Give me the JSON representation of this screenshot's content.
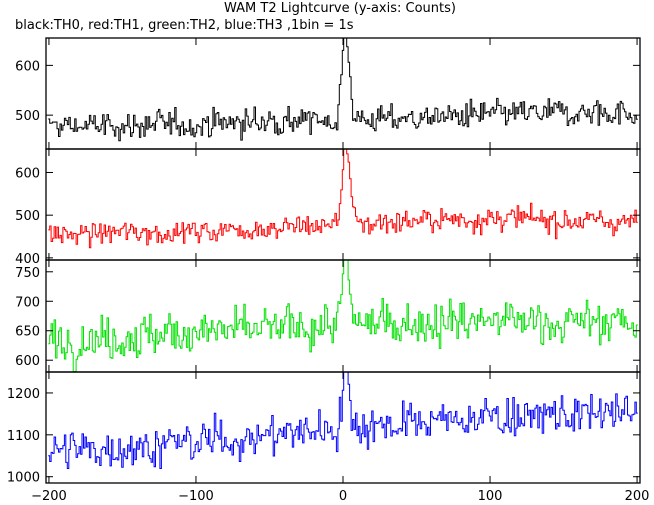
{
  "chart_data": {
    "type": "line",
    "title": "WAM T2 Lightcurve (y-axis: Counts)",
    "subtitle": "black:TH0, red:TH1, green:TH2, blue:TH3 ,1bin = 1s",
    "xlim": [
      -202,
      202
    ],
    "x_ticks": [
      -200,
      -100,
      0,
      100,
      200
    ],
    "x_range": [
      -200,
      200
    ],
    "grid": false,
    "panels": [
      {
        "name": "TH0",
        "color": "#000000",
        "ylim": [
          432,
          655
        ],
        "y_ticks": [
          500,
          600
        ],
        "baseline": 480,
        "noise": 24,
        "trend": [
          [
            -200,
            478
          ],
          [
            -150,
            478
          ],
          [
            -100,
            482
          ],
          [
            -50,
            488
          ],
          [
            0,
            490
          ],
          [
            50,
            494
          ],
          [
            100,
            500
          ],
          [
            150,
            504
          ],
          [
            200,
            506
          ]
        ],
        "peak": {
          "x": 2,
          "value": 655,
          "width": 2.5
        }
      },
      {
        "name": "TH1",
        "color": "#ff0000",
        "ylim": [
          395,
          655
        ],
        "y_ticks": [
          400,
          500,
          600
        ],
        "baseline": 460,
        "noise": 24,
        "trend": [
          [
            -200,
            452
          ],
          [
            -150,
            460
          ],
          [
            -100,
            462
          ],
          [
            -50,
            470
          ],
          [
            0,
            478
          ],
          [
            50,
            488
          ],
          [
            100,
            492
          ],
          [
            150,
            488
          ],
          [
            200,
            484
          ]
        ],
        "peak": {
          "x": 2,
          "value": 655,
          "width": 2.5
        }
      },
      {
        "name": "TH2",
        "color": "#00e000",
        "ylim": [
          580,
          770
        ],
        "y_ticks": [
          600,
          650,
          700,
          750
        ],
        "baseline": 640,
        "noise": 32,
        "trend": [
          [
            -200,
            632
          ],
          [
            -150,
            640
          ],
          [
            -100,
            648
          ],
          [
            -50,
            652
          ],
          [
            0,
            662
          ],
          [
            50,
            664
          ],
          [
            100,
            668
          ],
          [
            150,
            664
          ],
          [
            200,
            666
          ]
        ],
        "peak": {
          "x": 2,
          "value": 770,
          "width": 2
        }
      },
      {
        "name": "TH3",
        "color": "#0000ff",
        "ylim": [
          985,
          1250
        ],
        "y_ticks": [
          1000,
          1100,
          1200
        ],
        "baseline": 1070,
        "noise": 42,
        "trend": [
          [
            -200,
            1060
          ],
          [
            -150,
            1070
          ],
          [
            -100,
            1082
          ],
          [
            -50,
            1098
          ],
          [
            0,
            1120
          ],
          [
            50,
            1130
          ],
          [
            100,
            1142
          ],
          [
            150,
            1148
          ],
          [
            200,
            1150
          ]
        ],
        "peak": {
          "x": 2,
          "value": 1230,
          "width": 2
        }
      }
    ]
  }
}
